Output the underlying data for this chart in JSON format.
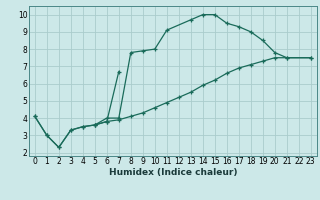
{
  "xlabel": "Humidex (Indice chaleur)",
  "bg_color": "#cce8e8",
  "grid_color": "#aacccc",
  "line_color": "#1a6b5a",
  "spine_color": "#4a8888",
  "xlim": [
    -0.5,
    23.5
  ],
  "ylim": [
    1.8,
    10.5
  ],
  "xticks": [
    0,
    1,
    2,
    3,
    4,
    5,
    6,
    7,
    8,
    9,
    10,
    11,
    12,
    13,
    14,
    15,
    16,
    17,
    18,
    19,
    20,
    21,
    22,
    23
  ],
  "yticks": [
    2,
    3,
    4,
    5,
    6,
    7,
    8,
    9,
    10
  ],
  "line1_x": [
    0,
    1,
    2,
    3,
    4,
    5,
    6,
    7,
    8,
    9,
    10,
    11,
    13,
    14,
    15,
    16,
    17,
    18,
    19,
    20,
    21,
    23
  ],
  "line1_y": [
    4.1,
    3.0,
    2.3,
    3.3,
    3.5,
    3.6,
    4.0,
    4.0,
    7.8,
    7.9,
    8.0,
    9.1,
    9.7,
    10.0,
    10.0,
    9.5,
    9.3,
    9.0,
    8.5,
    7.8,
    7.5,
    7.5
  ],
  "line2_x": [
    0,
    1,
    2,
    3,
    4,
    5,
    6,
    7
  ],
  "line2_y": [
    4.1,
    3.0,
    2.3,
    3.3,
    3.5,
    3.6,
    3.8,
    6.7
  ],
  "line3_x": [
    5,
    6,
    7,
    8,
    9,
    10,
    11,
    12,
    13,
    14,
    15,
    16,
    17,
    18,
    19,
    20,
    21,
    23
  ],
  "line3_y": [
    3.6,
    3.8,
    3.9,
    4.1,
    4.3,
    4.6,
    4.9,
    5.2,
    5.5,
    5.9,
    6.2,
    6.6,
    6.9,
    7.1,
    7.3,
    7.5,
    7.5,
    7.5
  ],
  "tick_fontsize": 5.5,
  "xlabel_fontsize": 6.5
}
